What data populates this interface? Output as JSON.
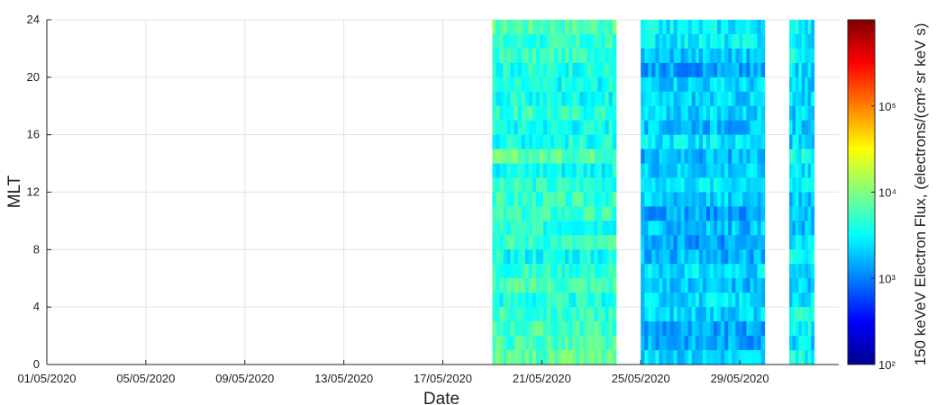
{
  "chart_data": {
    "type": "heatmap",
    "title": "",
    "xlabel": "Date",
    "ylabel": "MLT",
    "x_range": [
      "01/05/2020",
      "02/06/2020"
    ],
    "x_ticks": [
      "01/05/2020",
      "05/05/2020",
      "09/05/2020",
      "13/05/2020",
      "17/05/2020",
      "21/05/2020",
      "25/05/2020",
      "29/05/2020"
    ],
    "ylim": [
      0,
      24
    ],
    "y_ticks": [
      "0",
      "4",
      "8",
      "12",
      "16",
      "20",
      "24"
    ],
    "grid": true,
    "colorbar": {
      "label": "150 keVeV Electron Flux, (electrons/(cm² sr keV s)",
      "scale": "log",
      "range": [
        100,
        1000000
      ],
      "ticks": [
        "10²",
        "10³",
        "10⁴",
        "10⁵"
      ],
      "colormap": "jet"
    },
    "segments": [
      {
        "start": "19/05/2020",
        "end": "24/05/2020",
        "typical_log10_flux": 3.7
      },
      {
        "start": "25/05/2020",
        "end": "30/05/2020",
        "typical_log10_flux": 3.3
      },
      {
        "start": "31/05/2020",
        "end": "01/06/2020",
        "typical_log10_flux": 3.4
      }
    ],
    "colors": {
      "axis": "#262626",
      "grid": "#e3e3e3"
    }
  }
}
